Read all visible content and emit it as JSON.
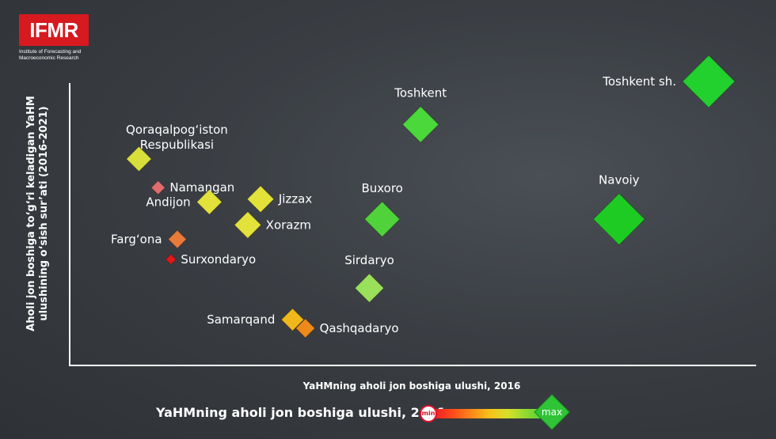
{
  "logo": {
    "name": "IFMR",
    "subtitle_line1": "Institute of Forecasting and",
    "subtitle_line2": "Macroeconomic Research"
  },
  "legend": {
    "title": "YaHMning aholi jon boshiga ulushi, 2021",
    "min_label": "min",
    "max_label": "max",
    "min_color": "#e0102a",
    "mid_color": "#f7c21a",
    "max_color": "#2fd13a"
  },
  "chart_data": {
    "type": "scatter",
    "title": "",
    "xlabel": "YaHMning aholi jon boshiga ulushi, 2016",
    "ylabel": "Aholi jon boshiga to‘g‘ri keladigan YaHM ulushining o‘sish sur’ati (2016-2021)",
    "xlabel_lines": [
      "YaHMning aholi jon boshiga ulushi, 2016"
    ],
    "ylabel_lines": [
      "Aholi jon boshiga to‘g‘ri keladigan YaHM",
      "ulushining o‘sish sur’ati (2016-2021)"
    ],
    "xlim": [
      0,
      1
    ],
    "ylim": [
      0,
      1
    ],
    "x_ticks_shown": false,
    "y_ticks_shown": false,
    "grid": false,
    "color_encodes": "YaHMning aholi jon boshiga ulushi, 2021",
    "size_encodes": "YaHMning aholi jon boshiga ulushi, 2021",
    "points": [
      {
        "label": "Toshkent sh.",
        "x": 0.94,
        "y": 1.0,
        "value2021": 1.0,
        "color": "#22d12e",
        "label_side": "left"
      },
      {
        "label": "Toshkent",
        "x": 0.49,
        "y": 0.85,
        "value2021": 0.62,
        "color": "#4ad83a",
        "label_side": "top"
      },
      {
        "label": "Navoiy",
        "x": 0.8,
        "y": 0.52,
        "value2021": 0.98,
        "color": "#1ecb22",
        "label_side": "top"
      },
      {
        "label": "Buxoro",
        "x": 0.43,
        "y": 0.52,
        "value2021": 0.6,
        "color": "#4fd23a",
        "label_side": "top"
      },
      {
        "label": "Sirdaryo",
        "x": 0.41,
        "y": 0.28,
        "value2021": 0.45,
        "color": "#9ae05a",
        "label_side": "top"
      },
      {
        "label": "Qoraqalpog‘iston Respublikasi",
        "x": 0.05,
        "y": 0.73,
        "value2021": 0.36,
        "color": "#d8de3a",
        "label_side": "top"
      },
      {
        "label": "Namangan",
        "x": 0.08,
        "y": 0.63,
        "value2021": 0.1,
        "color": "#e06c6c",
        "label_side": "right"
      },
      {
        "label": "Andijon",
        "x": 0.16,
        "y": 0.58,
        "value2021": 0.36,
        "color": "#e2e23a",
        "label_side": "left"
      },
      {
        "label": "Jizzax",
        "x": 0.24,
        "y": 0.59,
        "value2021": 0.4,
        "color": "#e2e23a",
        "label_side": "right"
      },
      {
        "label": "Xorazm",
        "x": 0.22,
        "y": 0.5,
        "value2021": 0.4,
        "color": "#e2e23a",
        "label_side": "right"
      },
      {
        "label": "Farg‘ona",
        "x": 0.11,
        "y": 0.45,
        "value2021": 0.2,
        "color": "#e87a3a",
        "label_side": "left"
      },
      {
        "label": "Surxondaryo",
        "x": 0.1,
        "y": 0.38,
        "value2021": 0.02,
        "color": "#e01818",
        "label_side": "right"
      },
      {
        "label": "Samarqand",
        "x": 0.29,
        "y": 0.17,
        "value2021": 0.3,
        "color": "#f0b81a",
        "label_side": "left"
      },
      {
        "label": "Qashqadaryo",
        "x": 0.31,
        "y": 0.14,
        "value2021": 0.22,
        "color": "#ee8a1a",
        "label_side": "right"
      }
    ]
  }
}
